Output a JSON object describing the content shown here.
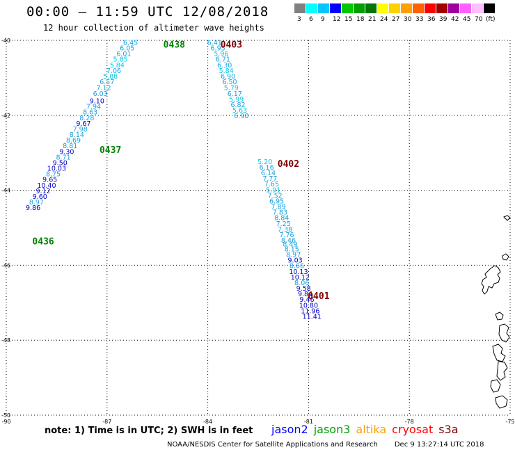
{
  "header": {
    "title": "00:00 – 11:59 UTC 12/08/2018",
    "subtitle": "12 hour collection of altimeter wave heights"
  },
  "colorbar": {
    "unit": "(ft)",
    "swatches": [
      {
        "color": "#808080",
        "label": "3"
      },
      {
        "color": "#00ffff",
        "label": "6"
      },
      {
        "color": "#00c8ff",
        "label": "9"
      },
      {
        "color": "#0000ff",
        "label": "12"
      },
      {
        "color": "#00c800",
        "label": "15"
      },
      {
        "color": "#00a000",
        "label": "18"
      },
      {
        "color": "#007800",
        "label": "21"
      },
      {
        "color": "#ffff00",
        "label": "24"
      },
      {
        "color": "#ffd000",
        "label": "27"
      },
      {
        "color": "#ffa000",
        "label": "30"
      },
      {
        "color": "#ff6000",
        "label": "33"
      },
      {
        "color": "#ff0000",
        "label": "36"
      },
      {
        "color": "#a00000",
        "label": "39"
      },
      {
        "color": "#a000a0",
        "label": "42"
      },
      {
        "color": "#ff60ff",
        "label": "45"
      },
      {
        "color": "#ffc0ff",
        "label": "70"
      },
      {
        "color": "#000000",
        "label": ""
      }
    ]
  },
  "axes": {
    "lat_ticks": [
      "-40",
      "-42",
      "-44",
      "-46",
      "-48",
      "-50"
    ],
    "lon_ticks": [
      "-90",
      "-87",
      "-84",
      "-81",
      "-78",
      "-75"
    ],
    "lat_range": [
      -50,
      -40
    ],
    "lon_range": [
      -90,
      -75
    ]
  },
  "tracks": [
    {
      "name": "jason3",
      "pass_labels": [
        {
          "text": "0436",
          "lon": -88.9,
          "lat": -45.37
        },
        {
          "text": "0437",
          "lon": -86.9,
          "lat": -42.93
        },
        {
          "text": "0438",
          "lon": -85.0,
          "lat": -40.12
        }
      ],
      "points": [
        {
          "v": "6.45",
          "lon": -86.3,
          "lat": -40.12
        },
        {
          "v": "6.05",
          "lon": -86.4,
          "lat": -40.27
        },
        {
          "v": "6.01",
          "lon": -86.5,
          "lat": -40.42
        },
        {
          "v": "5.85",
          "lon": -86.6,
          "lat": -40.57
        },
        {
          "v": "5.84",
          "lon": -86.7,
          "lat": -40.72
        },
        {
          "v": "7.06",
          "lon": -86.8,
          "lat": -40.87
        },
        {
          "v": "5.88",
          "lon": -86.9,
          "lat": -41.02
        },
        {
          "v": "6.57",
          "lon": -87.0,
          "lat": -41.17
        },
        {
          "v": "7.12",
          "lon": -87.1,
          "lat": -41.33
        },
        {
          "v": "6.03",
          "lon": -87.2,
          "lat": -41.48
        },
        {
          "v": "9.10",
          "lon": -87.3,
          "lat": -41.68
        },
        {
          "v": "7.94",
          "lon": -87.4,
          "lat": -41.83
        },
        {
          "v": "8.63",
          "lon": -87.5,
          "lat": -41.98
        },
        {
          "v": "8.28",
          "lon": -87.6,
          "lat": -42.13
        },
        {
          "v": "9.67",
          "lon": -87.7,
          "lat": -42.28
        },
        {
          "v": "7.98",
          "lon": -87.8,
          "lat": -42.43
        },
        {
          "v": "8.14",
          "lon": -87.9,
          "lat": -42.58
        },
        {
          "v": "8.69",
          "lon": -88.0,
          "lat": -42.73
        },
        {
          "v": "8.81",
          "lon": -88.1,
          "lat": -42.88
        },
        {
          "v": "9.30",
          "lon": -88.2,
          "lat": -43.03
        },
        {
          "v": "8.71",
          "lon": -88.3,
          "lat": -43.18
        },
        {
          "v": "9.50",
          "lon": -88.4,
          "lat": -43.33
        },
        {
          "v": "10.03",
          "lon": -88.5,
          "lat": -43.48
        },
        {
          "v": "8.75",
          "lon": -88.6,
          "lat": -43.63
        },
        {
          "v": "9.65",
          "lon": -88.7,
          "lat": -43.78
        },
        {
          "v": "10.40",
          "lon": -88.8,
          "lat": -43.93
        },
        {
          "v": "9.12",
          "lon": -88.9,
          "lat": -44.08
        },
        {
          "v": "9.60",
          "lon": -89.0,
          "lat": -44.23
        },
        {
          "v": "8.97",
          "lon": -89.1,
          "lat": -44.38
        },
        {
          "v": "9.86",
          "lon": -89.2,
          "lat": -44.53
        }
      ]
    },
    {
      "name": "cryosat",
      "pass_labels": [
        {
          "text": "0403",
          "lon": -83.3,
          "lat": -40.12
        },
        {
          "text": "0402",
          "lon": -81.6,
          "lat": -43.3
        },
        {
          "text": "0401",
          "lon": -80.7,
          "lat": -46.83
        }
      ],
      "points": [
        {
          "v": "6.41",
          "lon": -83.8,
          "lat": -40.12
        },
        {
          "v": "6.95",
          "lon": -83.7,
          "lat": -40.27
        },
        {
          "v": "5.96",
          "lon": -83.6,
          "lat": -40.42
        },
        {
          "v": "6.71",
          "lon": -83.55,
          "lat": -40.57
        },
        {
          "v": "6.30",
          "lon": -83.5,
          "lat": -40.72
        },
        {
          "v": "5.84",
          "lon": -83.45,
          "lat": -40.87
        },
        {
          "v": "6.90",
          "lon": -83.4,
          "lat": -41.02
        },
        {
          "v": "6.50",
          "lon": -83.35,
          "lat": -41.17
        },
        {
          "v": "5.79",
          "lon": -83.3,
          "lat": -41.33
        },
        {
          "v": "6.17",
          "lon": -83.2,
          "lat": -41.48
        },
        {
          "v": "5.99",
          "lon": -83.15,
          "lat": -41.63
        },
        {
          "v": "6.82",
          "lon": -83.1,
          "lat": -41.78
        },
        {
          "v": "5.63",
          "lon": -83.05,
          "lat": -41.93
        },
        {
          "v": "6.90",
          "lon": -83.0,
          "lat": -42.08
        },
        {
          "v": "5.20",
          "lon": -82.3,
          "lat": -43.3
        },
        {
          "v": "6.16",
          "lon": -82.25,
          "lat": -43.45
        },
        {
          "v": "6.14",
          "lon": -82.2,
          "lat": -43.6
        },
        {
          "v": "7.77",
          "lon": -82.15,
          "lat": -43.75
        },
        {
          "v": "7.65",
          "lon": -82.1,
          "lat": -43.9
        },
        {
          "v": "5.91",
          "lon": -82.05,
          "lat": -44.05
        },
        {
          "v": "7.52",
          "lon": -82.0,
          "lat": -44.2
        },
        {
          "v": "6.95",
          "lon": -81.95,
          "lat": -44.35
        },
        {
          "v": "7.89",
          "lon": -81.9,
          "lat": -44.5
        },
        {
          "v": "7.83",
          "lon": -81.85,
          "lat": -44.65
        },
        {
          "v": "8.84",
          "lon": -81.8,
          "lat": -44.8
        },
        {
          "v": "7.25",
          "lon": -81.75,
          "lat": -44.95
        },
        {
          "v": "7.38",
          "lon": -81.7,
          "lat": -45.1
        },
        {
          "v": "7.76",
          "lon": -81.65,
          "lat": -45.25
        },
        {
          "v": "8.46",
          "lon": -81.6,
          "lat": -45.4
        },
        {
          "v": "8.49",
          "lon": -81.55,
          "lat": -45.5
        },
        {
          "v": "8.15",
          "lon": -81.5,
          "lat": -45.63
        },
        {
          "v": "8.97",
          "lon": -81.45,
          "lat": -45.78
        },
        {
          "v": "9.03",
          "lon": -81.4,
          "lat": -45.93
        },
        {
          "v": "8.66",
          "lon": -81.35,
          "lat": -46.08
        },
        {
          "v": "10.13",
          "lon": -81.3,
          "lat": -46.23
        },
        {
          "v": "10.12",
          "lon": -81.25,
          "lat": -46.38
        },
        {
          "v": "8.06",
          "lon": -81.2,
          "lat": -46.53
        },
        {
          "v": "9.58",
          "lon": -81.15,
          "lat": -46.68
        },
        {
          "v": "9.84",
          "lon": -81.1,
          "lat": -46.83
        },
        {
          "v": "9.46",
          "lon": -81.05,
          "lat": -46.98
        },
        {
          "v": "10.80",
          "lon": -81.0,
          "lat": -47.13
        },
        {
          "v": "11.96",
          "lon": -80.95,
          "lat": -47.28
        },
        {
          "v": "11.41",
          "lon": -80.9,
          "lat": -47.43
        }
      ]
    }
  ],
  "note": "note: 1) Time is in UTC; 2) SWH is in feet",
  "legend": [
    {
      "name": "jason2",
      "color": "#0000ff"
    },
    {
      "name": "jason3",
      "color": "#00a000"
    },
    {
      "name": "altika",
      "color": "#ffa000"
    },
    {
      "name": "cryosat",
      "color": "#ff0000"
    },
    {
      "name": "s3a",
      "color": "#800000"
    }
  ],
  "footer": {
    "center": "NOAA/NESDIS Center for Satellite Applications and Research",
    "timestamp": "Dec  9 13:27:14 UTC 2018"
  }
}
